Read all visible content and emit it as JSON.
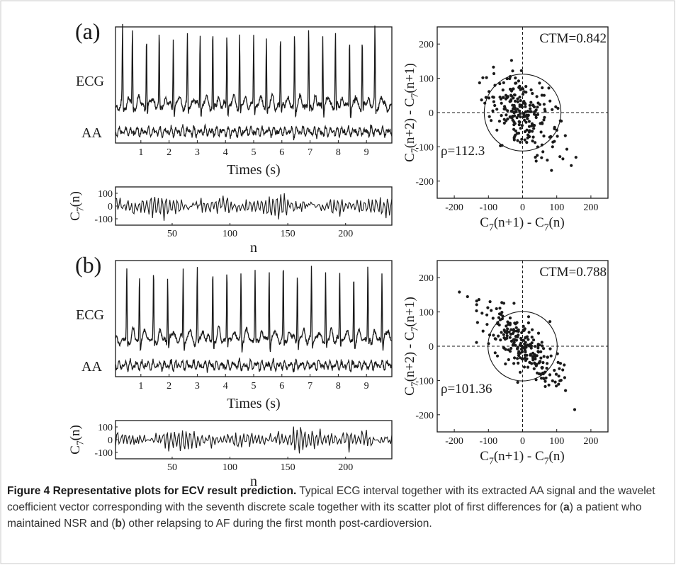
{
  "panels": [
    {
      "label": "(a)",
      "ecg_label": "ECG",
      "aa_label": "AA",
      "time_xlabel": "Times (s)",
      "time_ticks": [
        "1",
        "2",
        "3",
        "4",
        "5",
        "6",
        "7",
        "8",
        "9"
      ],
      "coef_ylabel": "C7(n)",
      "coef_yticks": [
        "100",
        "0",
        "-100"
      ],
      "coef_xlabel": "n",
      "coef_xticks": [
        "50",
        "100",
        "150",
        "200"
      ],
      "scatter_annotation": "CTM=0.842",
      "radius_annotation": "ρ=112.3"
    },
    {
      "label": "(b)",
      "ecg_label": "ECG",
      "aa_label": "AA",
      "time_xlabel": "Times (s)",
      "time_ticks": [
        "1",
        "2",
        "3",
        "4",
        "5",
        "6",
        "7",
        "8",
        "9"
      ],
      "coef_ylabel": "C7(n)",
      "coef_yticks": [
        "100",
        "0",
        "-100"
      ],
      "coef_xlabel": "n",
      "coef_xticks": [
        "50",
        "100",
        "150",
        "200"
      ],
      "scatter_annotation": "CTM=0.788",
      "radius_annotation": "ρ=101.36"
    }
  ],
  "caption": {
    "title": "Figure 4 Representative plots for ECV result prediction.",
    "text_before_a": " Typical ECG interval together with its extracted AA signal and the wavelet coefficient vector corresponding with the seventh discrete scale together with its scatter plot of first differences for (",
    "a": "a",
    "text_between": ") a patient who maintained NSR and (",
    "b": "b",
    "text_after_b": ") other relapsing to AF during the first month post-cardioversion."
  },
  "chart_data": [
    {
      "type": "line",
      "panel": "(a)",
      "title": "",
      "xlabel": "Times (s)",
      "x_ticks": [
        1,
        2,
        3,
        4,
        5,
        6,
        7,
        8,
        9
      ],
      "xlim": [
        0.1,
        9.9
      ],
      "series": [
        {
          "name": "ECG",
          "r_peak_times_s": [
            0.35,
            0.7,
            1.2,
            1.65,
            2.15,
            2.65,
            3.1,
            3.55,
            4.05,
            4.5,
            5.0,
            5.45,
            5.95,
            6.45,
            6.95,
            7.45,
            7.9,
            8.4,
            8.85,
            9.3
          ]
        },
        {
          "name": "AA"
        }
      ]
    },
    {
      "type": "line",
      "panel": "(a)",
      "xlabel": "n",
      "ylabel": "C7(n)",
      "xlim": [
        1,
        240
      ],
      "ylim": [
        -150,
        150
      ],
      "x_ticks": [
        50,
        100,
        150,
        200
      ],
      "y_ticks": [
        100,
        0,
        -100
      ]
    },
    {
      "type": "scatter",
      "panel": "(a)",
      "xlabel": "C7(n+1) - C7(n)",
      "ylabel": "C7(n+2) - C7(n+1)",
      "xlim": [
        -250,
        250
      ],
      "ylim": [
        -250,
        250
      ],
      "x_ticks": [
        -200,
        -100,
        0,
        100,
        200
      ],
      "y_ticks": [
        200,
        100,
        0,
        -100,
        -200
      ],
      "circle_radius": 112.3,
      "CTM": 0.842,
      "points_summary": {
        "n": 240,
        "x_range": [
          -180,
          160
        ],
        "y_range": [
          -185,
          155
        ],
        "trend": "negative correlation, cloud centred at origin"
      }
    },
    {
      "type": "line",
      "panel": "(b)",
      "xlabel": "Times (s)",
      "x_ticks": [
        1,
        2,
        3,
        4,
        5,
        6,
        7,
        8,
        9
      ],
      "xlim": [
        0.1,
        9.9
      ],
      "series": [
        {
          "name": "ECG",
          "r_peak_times_s": [
            0.5,
            0.95,
            1.45,
            1.95,
            2.5,
            3.0,
            3.55,
            4.05,
            4.55,
            5.05,
            5.55,
            6.05,
            6.55,
            7.05,
            7.55,
            8.05,
            8.55,
            9.05,
            9.55
          ]
        },
        {
          "name": "AA"
        }
      ]
    },
    {
      "type": "line",
      "panel": "(b)",
      "xlabel": "n",
      "ylabel": "C7(n)",
      "xlim": [
        1,
        240
      ],
      "ylim": [
        -150,
        150
      ],
      "x_ticks": [
        50,
        100,
        150,
        200
      ],
      "y_ticks": [
        100,
        0,
        -100
      ]
    },
    {
      "type": "scatter",
      "panel": "(b)",
      "xlabel": "C7(n+1) - C7(n)",
      "ylabel": "C7(n+2) - C7(n+1)",
      "xlim": [
        -250,
        250
      ],
      "ylim": [
        -250,
        250
      ],
      "x_ticks": [
        -200,
        -100,
        0,
        100,
        200
      ],
      "y_ticks": [
        200,
        100,
        0,
        -100,
        -200
      ],
      "circle_radius": 101.36,
      "CTM": 0.788,
      "points_summary": {
        "n": 240,
        "x_range": [
          -160,
          160
        ],
        "y_range": [
          -140,
          160
        ],
        "trend": "strong negative correlation"
      }
    }
  ]
}
